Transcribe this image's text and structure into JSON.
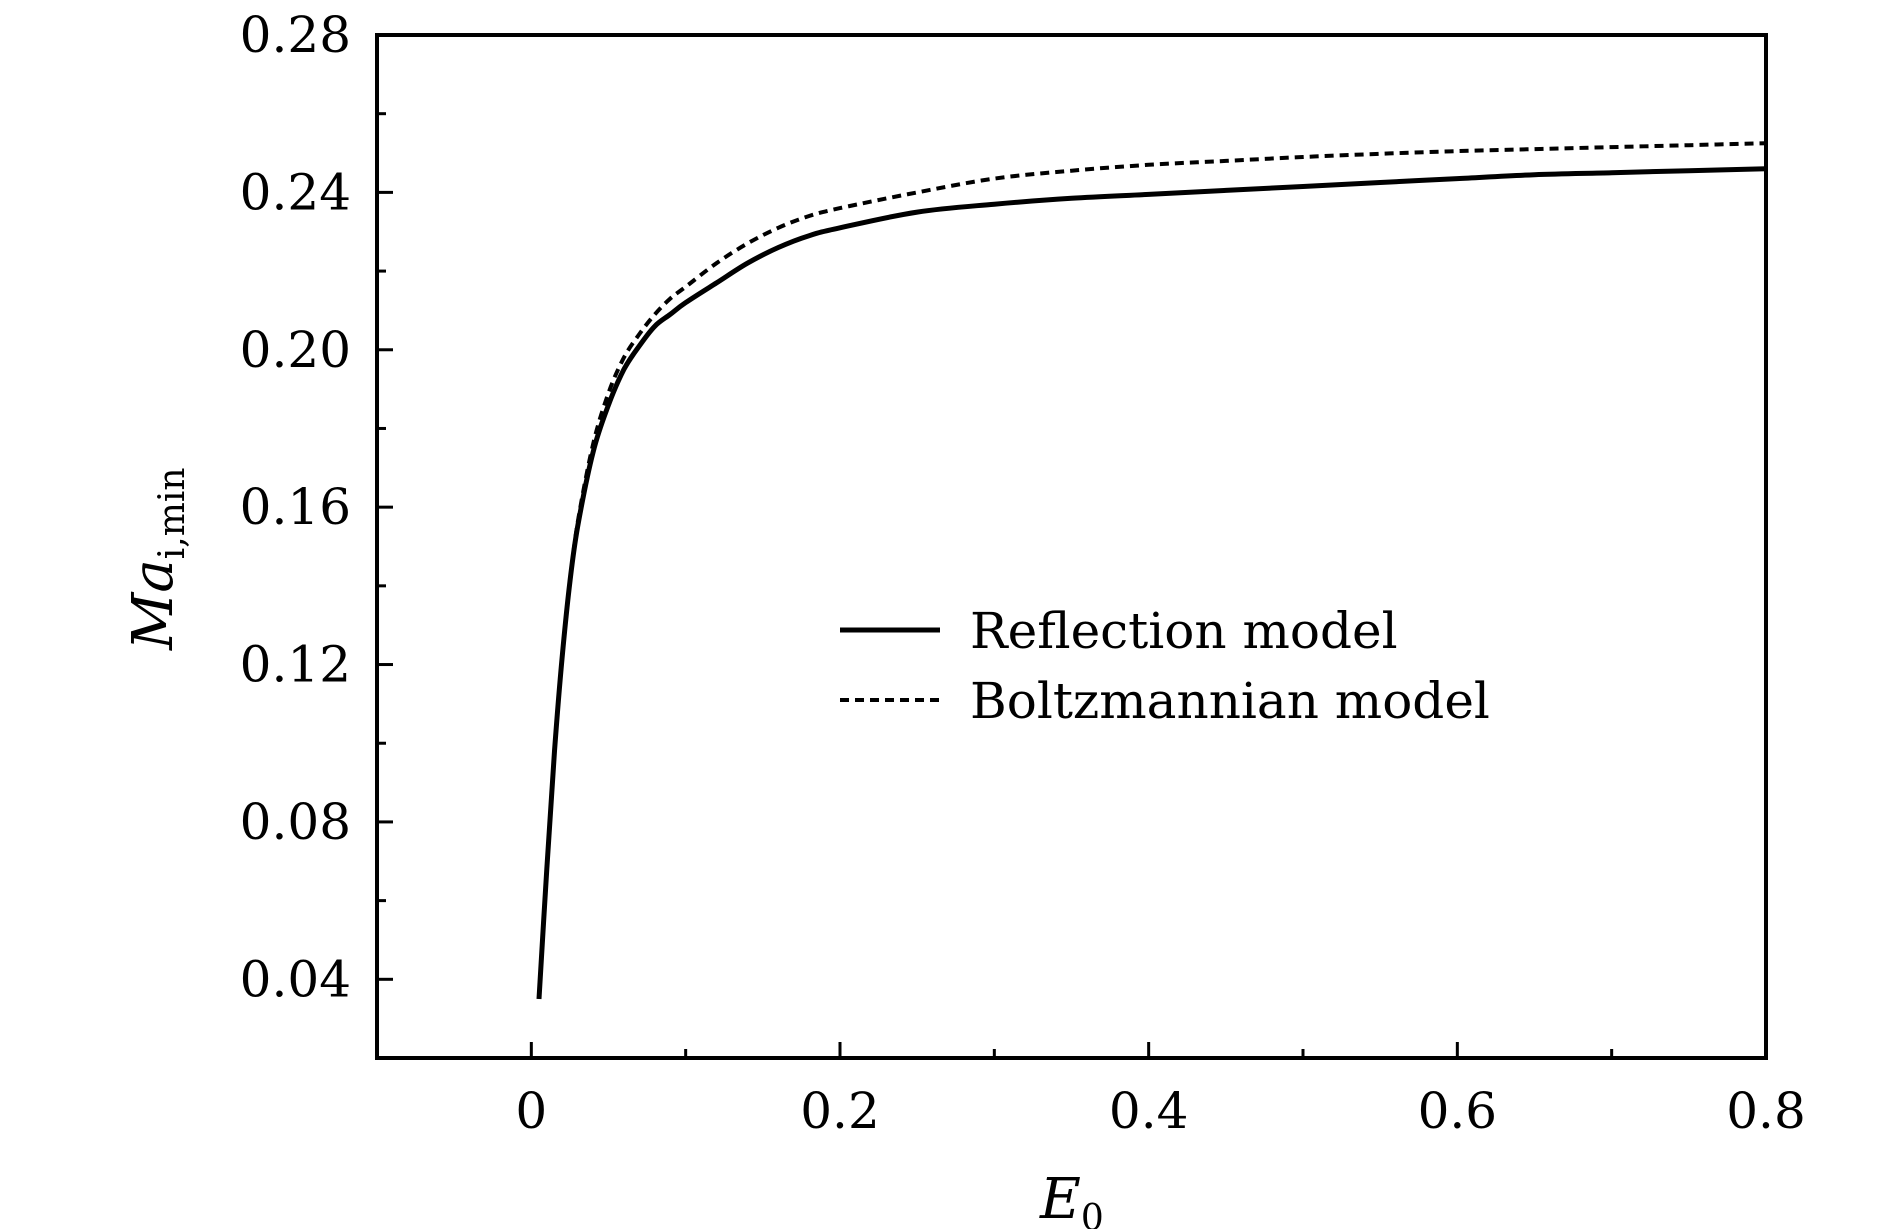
{
  "chart_data": {
    "type": "line",
    "title": "",
    "xlabel": {
      "main": "E",
      "sub": "0"
    },
    "ylabel": {
      "main": "Ma",
      "sub": "i,min"
    },
    "xlim": [
      -0.1,
      0.8
    ],
    "ylim": [
      0.02,
      0.28
    ],
    "xticks": [
      "0",
      "0.2",
      "0.4",
      "0.6",
      "0.8"
    ],
    "xtick_values": [
      0,
      0.2,
      0.4,
      0.6,
      0.8
    ],
    "yticks": [
      "0.04",
      "0.08",
      "0.12",
      "0.16",
      "0.20",
      "0.24",
      "0.28"
    ],
    "ytick_values": [
      0.04,
      0.08,
      0.12,
      0.16,
      0.2,
      0.24,
      0.28
    ],
    "grid": false,
    "legend_position": "center-right",
    "series": [
      {
        "name": "Reflection model",
        "style": "solid",
        "color": "#000000",
        "x": [
          0.005,
          0.01,
          0.015,
          0.02,
          0.025,
          0.03,
          0.04,
          0.05,
          0.06,
          0.07,
          0.08,
          0.09,
          0.1,
          0.12,
          0.14,
          0.16,
          0.18,
          0.2,
          0.25,
          0.3,
          0.35,
          0.4,
          0.45,
          0.5,
          0.55,
          0.6,
          0.65,
          0.7,
          0.75,
          0.8
        ],
        "y": [
          0.035,
          0.068,
          0.098,
          0.122,
          0.141,
          0.155,
          0.174,
          0.186,
          0.195,
          0.201,
          0.206,
          0.209,
          0.212,
          0.217,
          0.222,
          0.226,
          0.229,
          0.231,
          0.235,
          0.237,
          0.2385,
          0.2395,
          0.2405,
          0.2415,
          0.2425,
          0.2435,
          0.2445,
          0.245,
          0.2455,
          0.246
        ]
      },
      {
        "name": "Boltzmannian model",
        "style": "dotted",
        "color": "#000000",
        "x": [
          0.025,
          0.03,
          0.04,
          0.05,
          0.06,
          0.07,
          0.08,
          0.09,
          0.1,
          0.12,
          0.14,
          0.16,
          0.18,
          0.2,
          0.25,
          0.3,
          0.35,
          0.4,
          0.45,
          0.5,
          0.55,
          0.6,
          0.65,
          0.7,
          0.75,
          0.8
        ],
        "y": [
          0.141,
          0.156,
          0.176,
          0.189,
          0.198,
          0.204,
          0.209,
          0.213,
          0.216,
          0.222,
          0.227,
          0.231,
          0.234,
          0.236,
          0.24,
          0.2435,
          0.2455,
          0.247,
          0.248,
          0.249,
          0.2498,
          0.2505,
          0.251,
          0.2515,
          0.252,
          0.2525
        ]
      }
    ]
  }
}
